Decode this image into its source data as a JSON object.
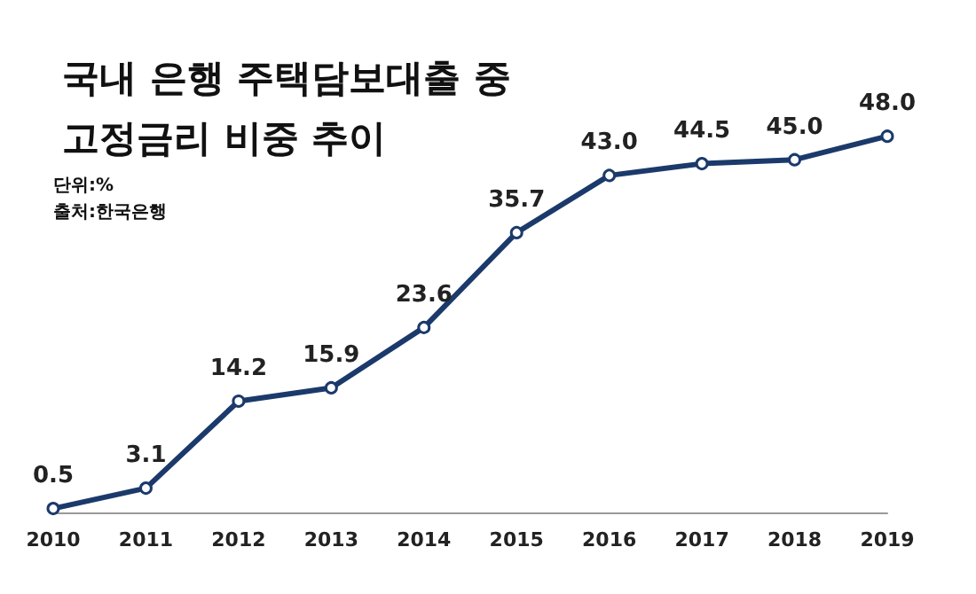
{
  "chart_data": {
    "type": "line",
    "title": "국내 은행 주택담보대출 중\n고정금리 비중 추이",
    "subtitle": "단위:%",
    "annotations": [
      "출처:한국은행"
    ],
    "categories": [
      "2010",
      "2011",
      "2012",
      "2013",
      "2014",
      "2015",
      "2016",
      "2017",
      "2018",
      "2019"
    ],
    "series": [
      {
        "color": "#1b3a6b",
        "values": [
          0.5,
          3.1,
          14.2,
          15.9,
          23.6,
          35.7,
          43.0,
          44.5,
          45.0,
          48.0
        ],
        "value_labels": [
          "0.5",
          "3.1",
          "14.2",
          "15.9",
          "23.6",
          "35.7",
          "43.0",
          "44.5",
          "45.0",
          "48.0"
        ]
      }
    ],
    "marker": "circle",
    "line_style": "solid"
  }
}
